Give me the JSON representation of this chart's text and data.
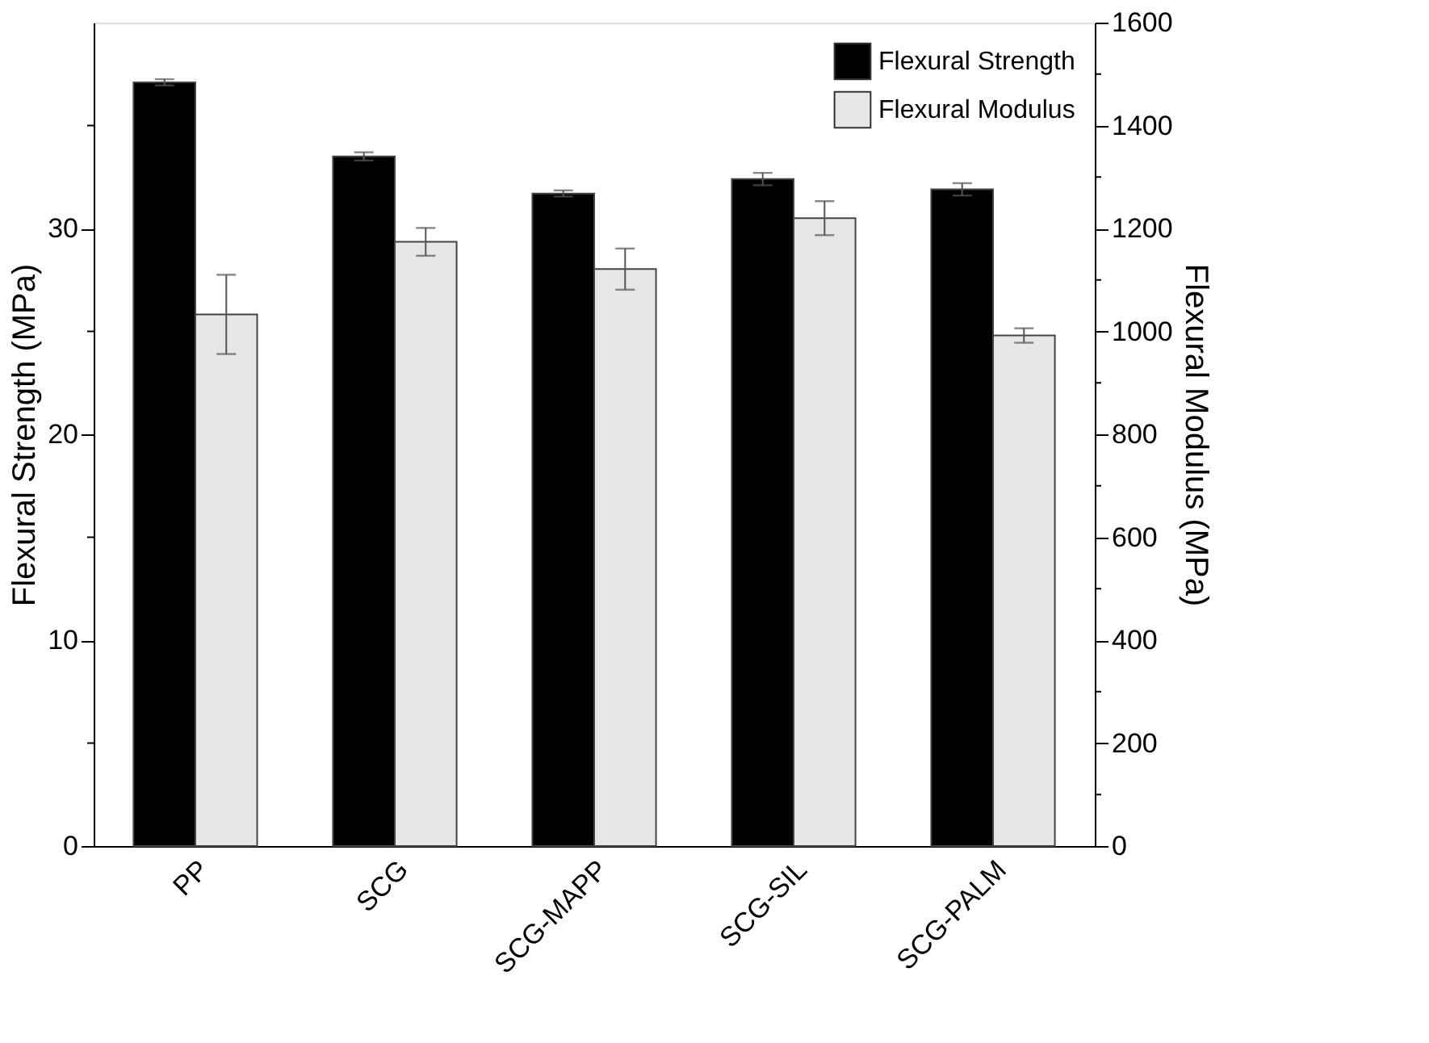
{
  "chart_data": {
    "type": "bar",
    "categories": [
      "PP",
      "SCG",
      "SCG-MAPP",
      "SCG-SIL",
      "SCG-PALM"
    ],
    "ylabel": "Flexural Strength (MPa)",
    "y2label": "Flexural Modulus (MPa)",
    "ylim": [
      0,
      40
    ],
    "yticks": [
      0,
      10,
      20,
      30
    ],
    "y2lim": [
      0,
      1600
    ],
    "y2ticks": [
      0,
      200,
      400,
      600,
      800,
      1000,
      1200,
      1400,
      1600
    ],
    "legend": "top right",
    "grid": false,
    "series": [
      {
        "name": "Flexural Strength",
        "color": "#000000",
        "values": [
          37.1,
          33.5,
          31.7,
          32.4,
          31.9
        ],
        "errors": [
          0.15,
          0.2,
          0.15,
          0.3,
          0.3
        ]
      },
      {
        "name": "Flexural Modulus",
        "color": "#e6e6e6",
        "axis": "y2",
        "values": [
          1033,
          1174,
          1121,
          1220,
          992
        ],
        "errors": [
          77,
          27,
          40,
          33,
          14
        ]
      }
    ]
  }
}
